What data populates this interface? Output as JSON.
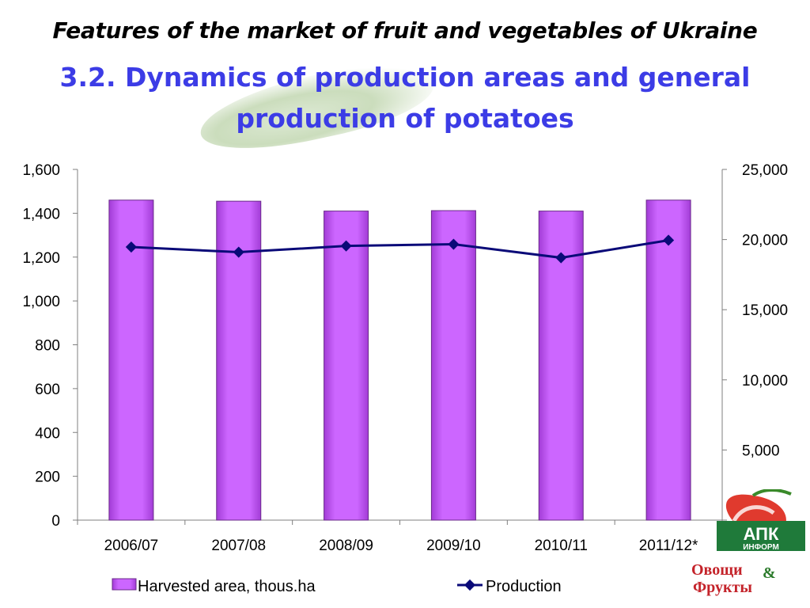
{
  "header": {
    "title": "Features of the market of fruit and vegetables of Ukraine",
    "subtitle": "3.2. Dynamics of production areas and general production of potatoes"
  },
  "chart_data": {
    "type": "bar",
    "categories": [
      "2006/07",
      "2007/08",
      "2008/09",
      "2009/10",
      "2010/11",
      "2011/12*"
    ],
    "series": [
      {
        "name": "Harvested area, thous.ha",
        "type": "bar",
        "axis": "left",
        "color": "#cc66ff",
        "values": [
          1460,
          1455,
          1410,
          1412,
          1410,
          1460
        ]
      },
      {
        "name": "Production",
        "type": "line",
        "axis": "right",
        "color": "#0a0a78",
        "values": [
          19467,
          19100,
          19545,
          19666,
          18705,
          19950
        ]
      }
    ],
    "left_axis": {
      "ylim": [
        0,
        1600
      ],
      "ticks": [
        0,
        200,
        400,
        600,
        800,
        1000,
        1200,
        1400,
        1600
      ],
      "tick_labels": [
        "0",
        "200",
        "400",
        "600",
        "800",
        "1,000",
        "1,200",
        "1,400",
        "1,600"
      ]
    },
    "right_axis": {
      "ylim": [
        0,
        25000
      ],
      "ticks": [
        0,
        5000,
        10000,
        15000,
        20000,
        25000
      ],
      "tick_labels": [
        "0",
        "5,000",
        "10,000",
        "15,000",
        "20,000",
        "25,000"
      ]
    },
    "legend": "bottom",
    "grid": false
  },
  "logo": {
    "line1": "АПК",
    "line2": "ИНФОРМ",
    "line3": "Овощи",
    "amp": "&",
    "line4": "Фрукты"
  }
}
